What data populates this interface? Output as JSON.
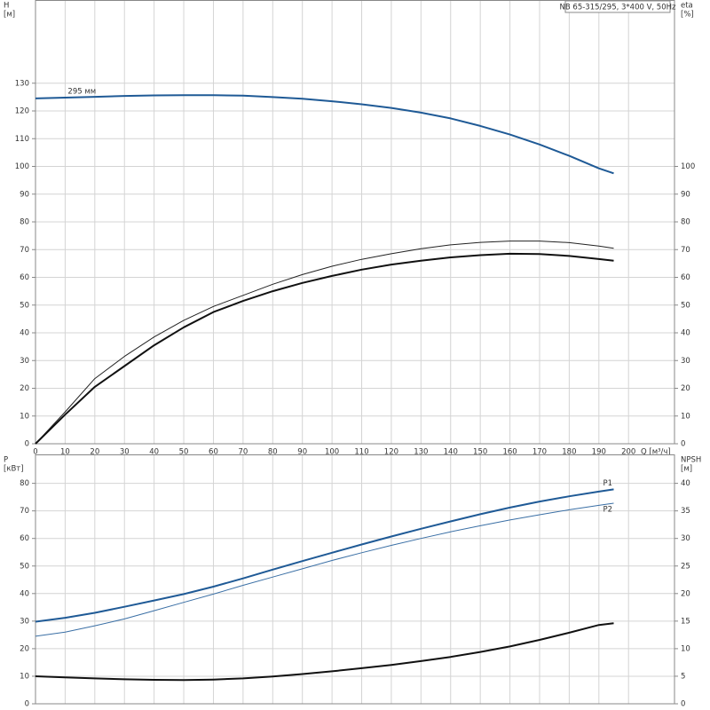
{
  "chart_data": [
    {
      "type": "line",
      "title": "NB 65-315/295, 3*400 V, 50Hz",
      "ylabel": "H",
      "yunit": "[м]",
      "y2label": "eta",
      "y2unit": "[%]",
      "xlabel": "Q [м³/ч]",
      "x": [
        0,
        10,
        20,
        30,
        40,
        50,
        60,
        70,
        80,
        90,
        100,
        110,
        120,
        130,
        140,
        150,
        160,
        170,
        180,
        190,
        195
      ],
      "xlim": [
        0,
        215.5
      ],
      "xticks": [
        0,
        10,
        20,
        30,
        40,
        50,
        60,
        70,
        80,
        90,
        100,
        110,
        120,
        130,
        140,
        150,
        160,
        170,
        180,
        190,
        200
      ],
      "ylim": [
        0,
        160
      ],
      "yticks": [
        0,
        10,
        20,
        30,
        40,
        50,
        60,
        70,
        80,
        90,
        100,
        110,
        120,
        130
      ],
      "y2lim": [
        0,
        160
      ],
      "y2ticks": [
        0,
        10,
        20,
        30,
        40,
        50,
        60,
        70,
        80,
        90,
        100
      ],
      "grid": true,
      "series": [
        {
          "name": "295 мм",
          "color": "#1f5a96",
          "width": 2,
          "values": [
            124.5,
            124.8,
            125.1,
            125.4,
            125.6,
            125.7,
            125.7,
            125.5,
            125.0,
            124.4,
            123.5,
            122.4,
            121.1,
            119.4,
            117.3,
            114.6,
            111.5,
            107.9,
            103.8,
            99.3,
            97.5
          ]
        },
        {
          "color": "#222222",
          "width": 1,
          "axis": "y2",
          "values": [
            0,
            11.5,
            23.5,
            31.5,
            38.5,
            44.5,
            49.5,
            53.5,
            57.5,
            61,
            64,
            66.5,
            68.5,
            70.3,
            71.7,
            72.6,
            73.1,
            73.1,
            72.5,
            71.3,
            70.5
          ]
        },
        {
          "color": "#111111",
          "width": 2,
          "axis": "y2",
          "values": [
            0,
            10.5,
            20.5,
            28,
            35.5,
            42,
            47.5,
            51.5,
            55,
            58,
            60.5,
            62.8,
            64.6,
            66,
            67.2,
            68,
            68.5,
            68.4,
            67.7,
            66.6,
            66
          ]
        }
      ]
    },
    {
      "type": "line",
      "ylabel": "P",
      "yunit": "[кВт]",
      "y2label": "NPSH",
      "y2unit": "[м]",
      "x": [
        0,
        10,
        20,
        30,
        40,
        50,
        60,
        70,
        80,
        90,
        100,
        110,
        120,
        130,
        140,
        150,
        160,
        170,
        180,
        190,
        195
      ],
      "ylim": [
        0,
        90.5
      ],
      "yticks": [
        0,
        10,
        20,
        30,
        40,
        50,
        60,
        70,
        80
      ],
      "y2lim": [
        0,
        45.25
      ],
      "y2ticks": [
        0,
        5,
        10,
        15,
        20,
        25,
        30,
        35,
        40
      ],
      "grid": true,
      "series": [
        {
          "name": "P1",
          "color": "#1f5a96",
          "width": 2,
          "values": [
            29.8,
            31.2,
            33,
            35.2,
            37.5,
            39.8,
            42.5,
            45.5,
            48.7,
            51.8,
            54.8,
            57.8,
            60.7,
            63.5,
            66.2,
            68.8,
            71.2,
            73.4,
            75.3,
            77,
            77.8
          ]
        },
        {
          "name": "P2",
          "color": "#3a6fa5",
          "width": 1,
          "values": [
            24.5,
            26,
            28.3,
            30.8,
            33.8,
            36.8,
            39.8,
            43,
            46,
            49,
            52,
            54.8,
            57.5,
            60,
            62.4,
            64.6,
            66.7,
            68.6,
            70.4,
            72,
            72.8
          ]
        },
        {
          "color": "#111111",
          "width": 2,
          "axis": "y2",
          "values": [
            5,
            4.8,
            4.6,
            4.45,
            4.35,
            4.3,
            4.4,
            4.6,
            4.95,
            5.4,
            5.9,
            6.45,
            7.05,
            7.75,
            8.5,
            9.4,
            10.4,
            11.6,
            12.9,
            14.3,
            14.6
          ]
        }
      ]
    }
  ]
}
